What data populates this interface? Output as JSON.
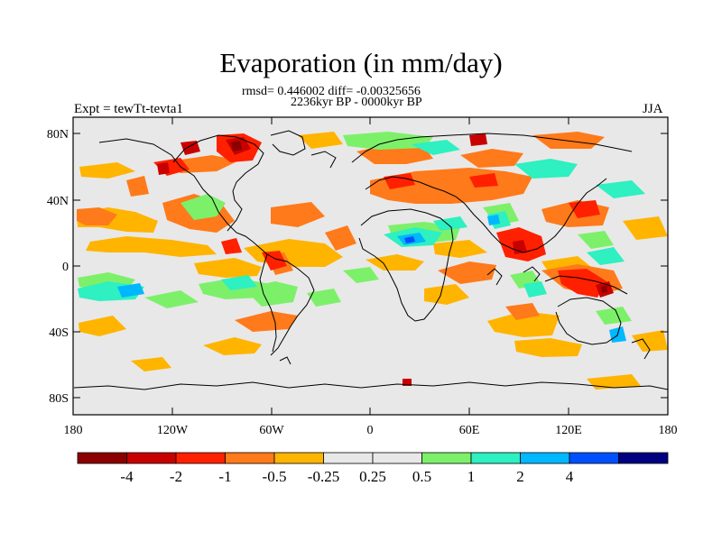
{
  "title": "Evaporation (in mm/day)",
  "subtitle_stats": "rmsd= 0.446002 diff= -0.00325656",
  "subtitle_period": "2236kyr BP - 0000kyr BP",
  "experiment_label": "Expt = tewTt-tevta1",
  "season_label": "JJA",
  "lat_ticks": [
    "80N",
    "40N",
    "0",
    "40S",
    "80S"
  ],
  "lon_ticks": [
    "180",
    "120W",
    "60W",
    "0",
    "60E",
    "120E",
    "180"
  ],
  "colorbar": {
    "colors": [
      "#8b0000",
      "#c80000",
      "#ff2000",
      "#ff7a1a",
      "#ffb400",
      "#e8e8e8",
      "#e8e8e8",
      "#7df06a",
      "#2ef0c0",
      "#00b8ff",
      "#0050ff",
      "#000080"
    ],
    "labels": [
      "-4",
      "-2",
      "-1",
      "-0.5",
      "-0.25",
      "0.25",
      "0.5",
      "1",
      "2",
      "4"
    ]
  },
  "colors": {
    "land_ocean_neutral": "#e8e8e8",
    "coastline": "#000000"
  }
}
